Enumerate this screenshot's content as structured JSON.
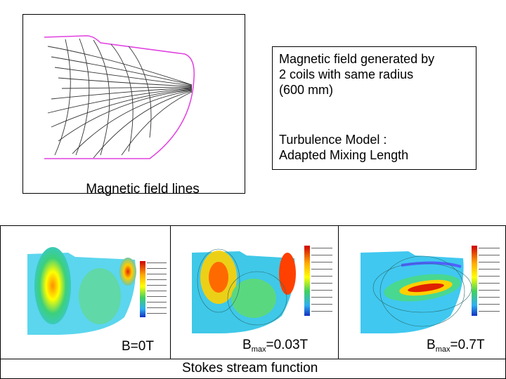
{
  "text_box": {
    "line1": "Magnetic field generated by",
    "line2": "2 coils with same radius",
    "line3": "(600 mm)",
    "line4": "Turbulence Model :",
    "line5": "Adapted Mixing Length"
  },
  "top_figure": {
    "caption": "Magnetic field lines"
  },
  "panels": [
    {
      "label_prefix": "B=0T",
      "label_sub": "",
      "label_suffix": ""
    },
    {
      "label_prefix": "B",
      "label_sub": "max",
      "label_suffix": "=0.03T"
    },
    {
      "label_prefix": "B",
      "label_sub": "max",
      "label_suffix": "=0.7T"
    }
  ],
  "bottom_caption": "Stokes stream function",
  "colors": {
    "outline": "#e040e0",
    "lines": "#333333"
  }
}
